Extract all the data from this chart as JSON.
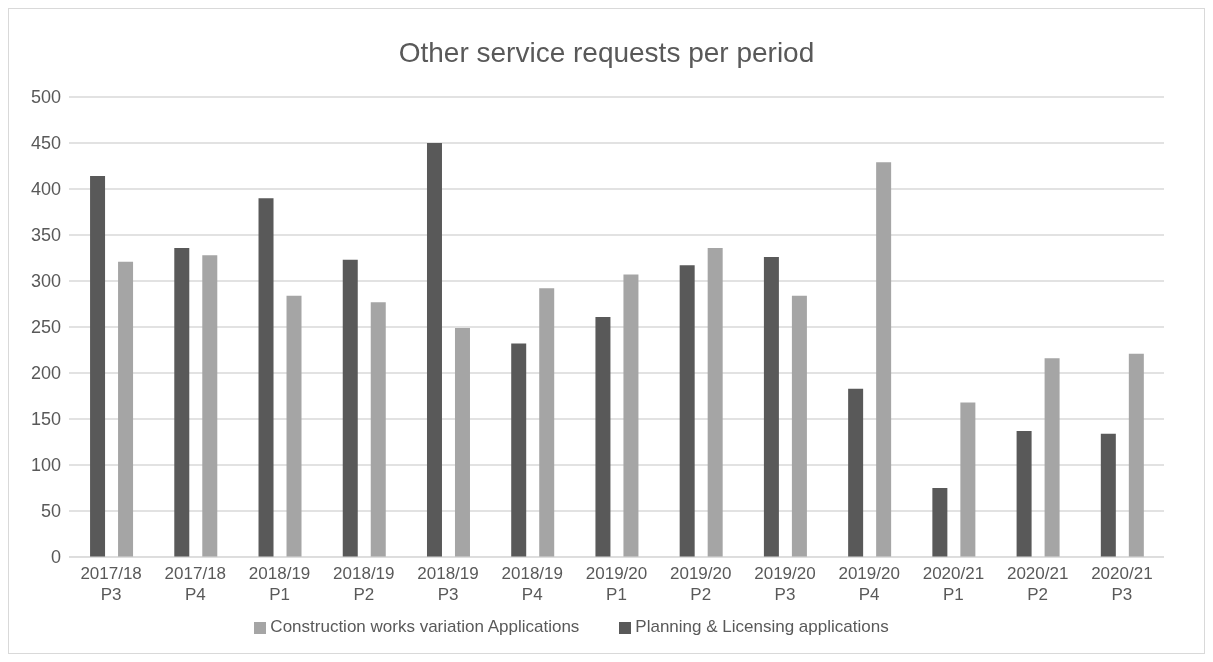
{
  "chart_data": {
    "type": "bar",
    "title": "Other service requests per period",
    "categories": [
      "2017/18 P3",
      "2017/18 P4",
      "2018/19 P1",
      "2018/19 P2",
      "2018/19 P3",
      "2018/19 P4",
      "2019/20 P1",
      "2019/20 P2",
      "2019/20 P3",
      "2019/20 P4",
      "2020/21 P1",
      "2020/21 P2",
      "2020/21 P3"
    ],
    "series": [
      {
        "name": "Planning & Licensing applications",
        "color": "#595959",
        "values": [
          414,
          336,
          390,
          323,
          450,
          232,
          261,
          317,
          326,
          183,
          75,
          137,
          134
        ]
      },
      {
        "name": "Construction works variation Applications",
        "color": "#a5a5a5",
        "values": [
          321,
          328,
          284,
          277,
          249,
          292,
          307,
          336,
          284,
          429,
          168,
          216,
          221
        ]
      }
    ],
    "ylim": [
      0,
      500
    ],
    "yticks": [
      0,
      50,
      100,
      150,
      200,
      250,
      300,
      350,
      400,
      450,
      500
    ],
    "grid": "y",
    "legend": "bottom"
  }
}
